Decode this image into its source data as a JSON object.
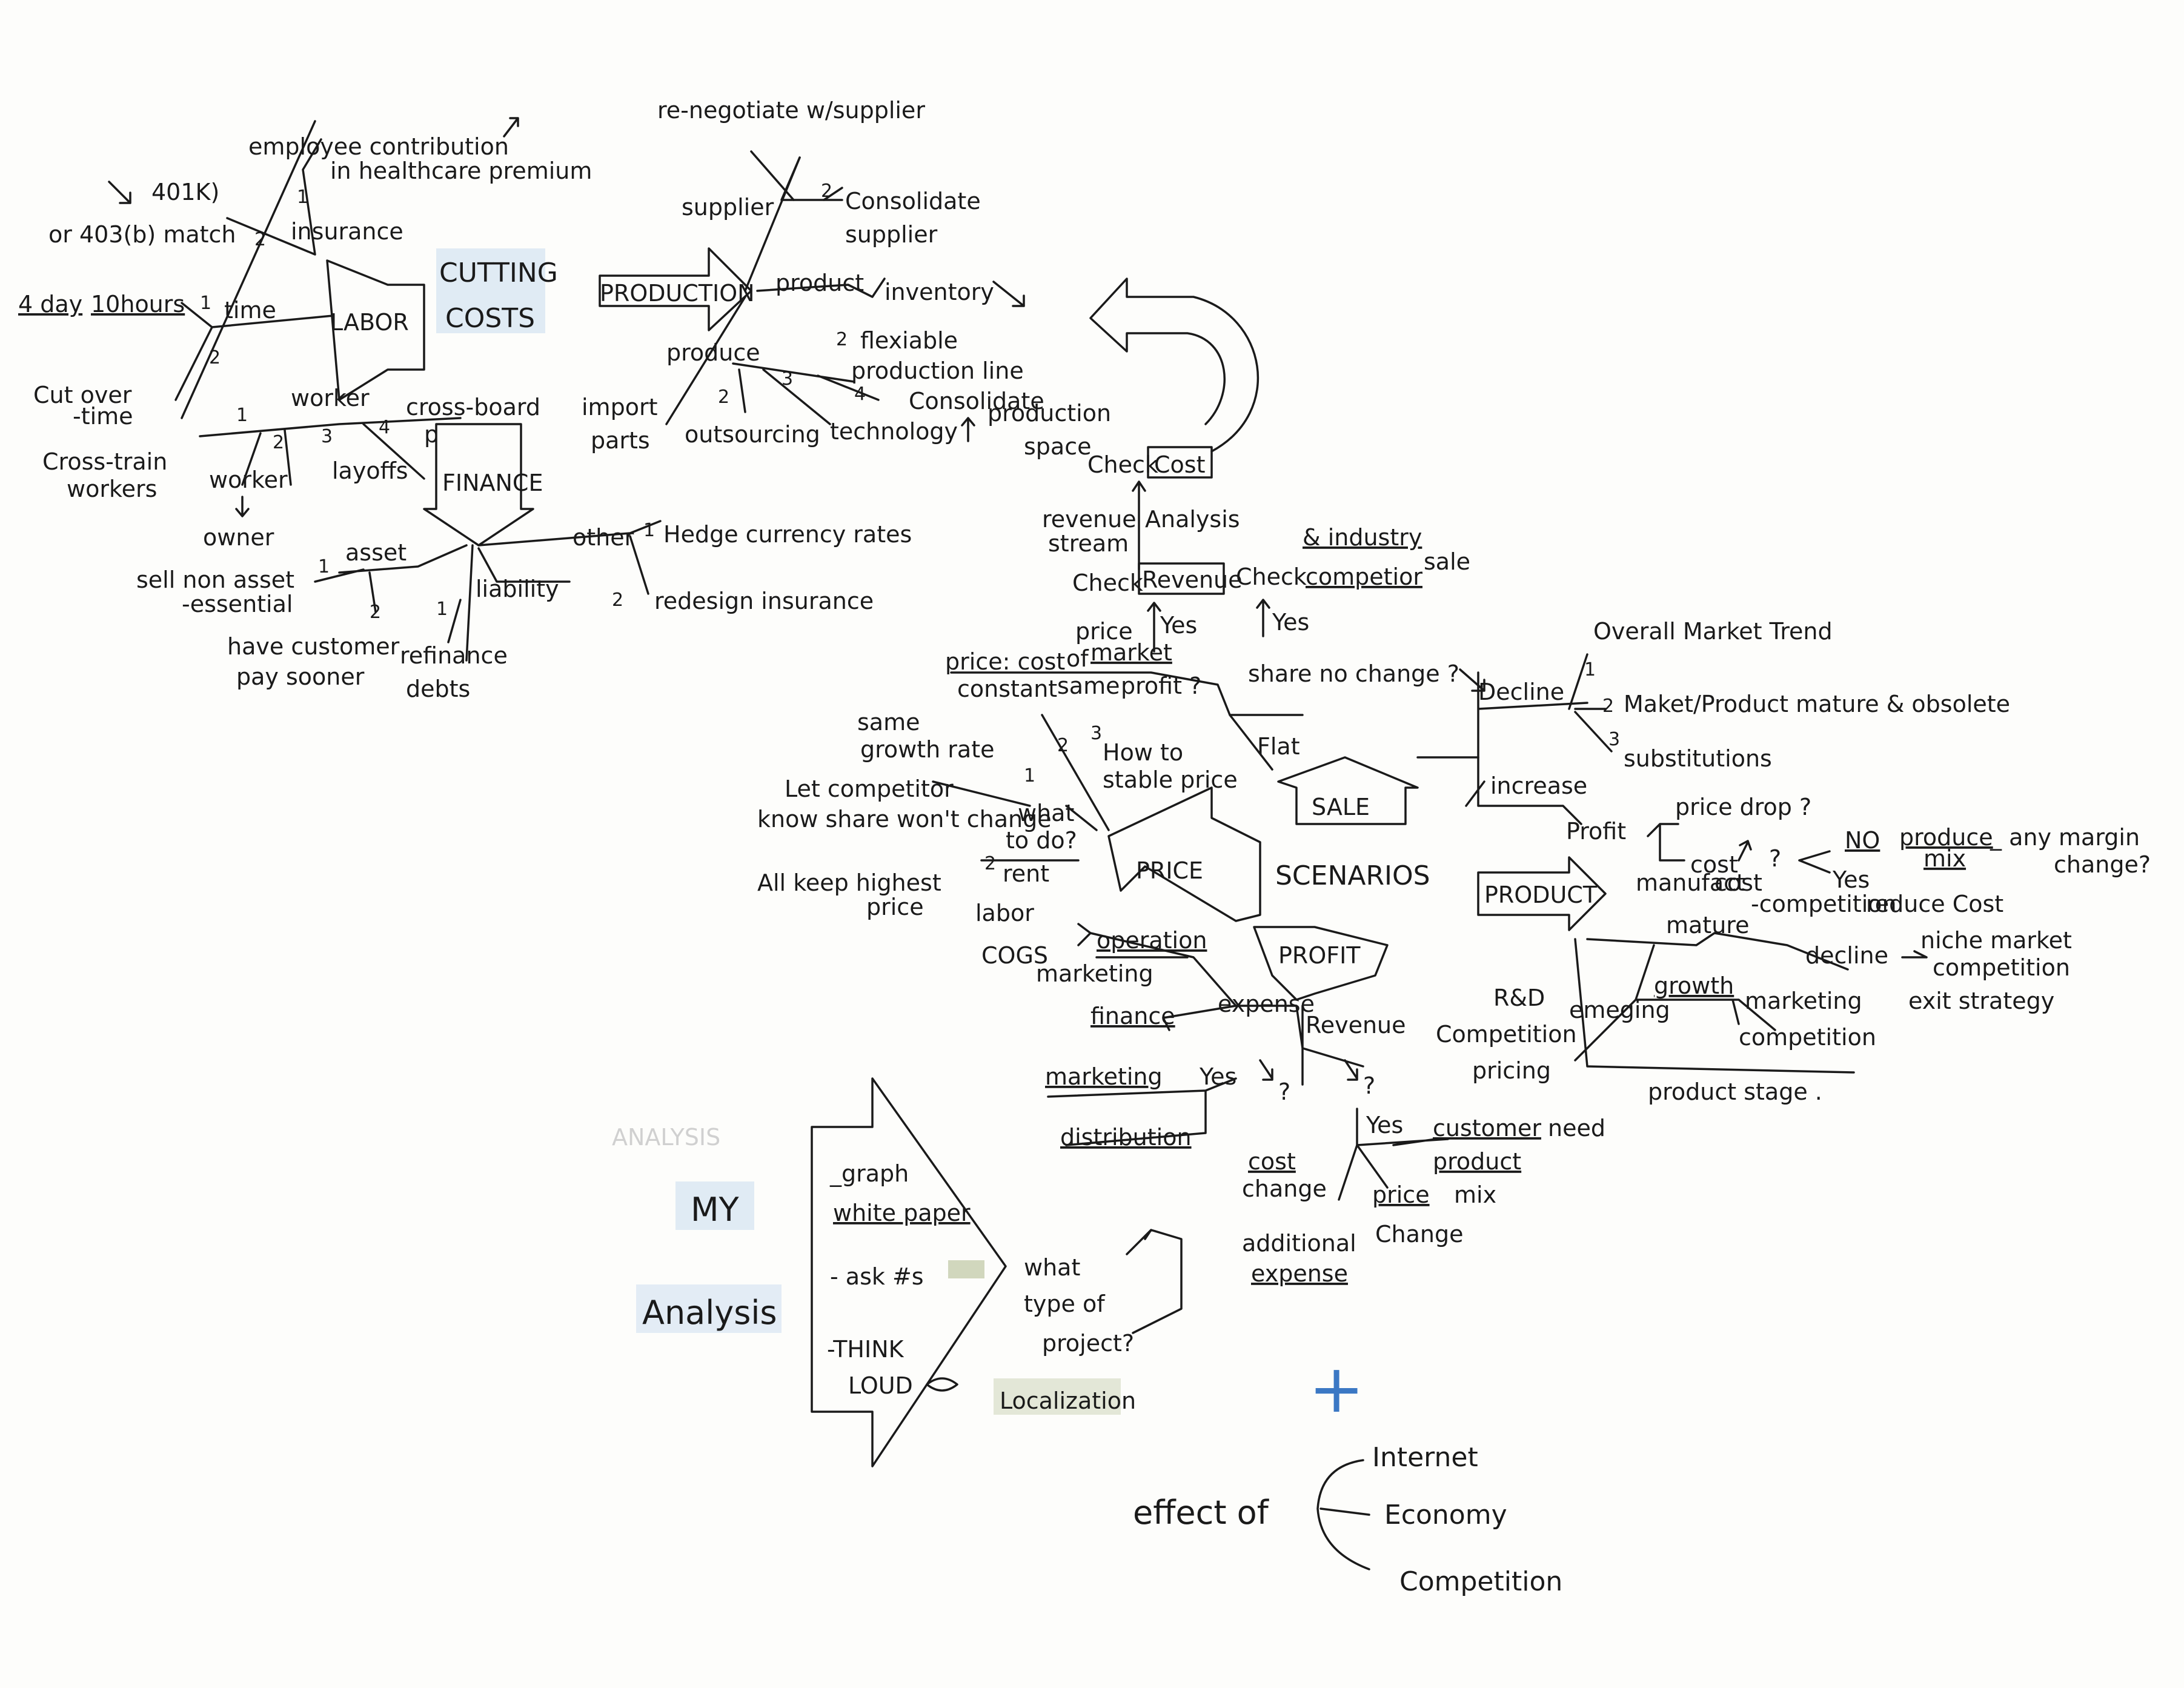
{
  "labor": {
    "label": "LABOR",
    "insurance": "insurance",
    "employee_contribution": "employee contribution",
    "in_healthcare_premium": "in healthcare premium",
    "k401": "401K)",
    "match_403b": "or 403(b) match",
    "time": "time",
    "four_day": "4 day",
    "ten_hours": "10hours",
    "cut_over": "Cut over",
    "time_word": "-time",
    "worker": "worker",
    "cross_train": "Cross-train",
    "workers": "workers",
    "worker_owner_a": "worker",
    "worker_owner_b": "owner",
    "layoffs": "layoffs",
    "cross_board": "cross-board",
    "pay": "pay"
  },
  "cutting_costs": {
    "line1": "CUTTING",
    "line2": "COSTS"
  },
  "production": {
    "label": "PRODUCTION",
    "re_negotiate": "re-negotiate w/supplier",
    "supplier": "supplier",
    "consolidate_supplier_a": "Consolidate",
    "consolidate_supplier_b": "supplier",
    "product": "product",
    "inventory": "inventory",
    "flexible_a": "flexiable",
    "flexible_b": "production line",
    "produce": "produce",
    "import_a": "import",
    "import_b": "parts",
    "outsourcing": "outsourcing",
    "technology": "technology",
    "consolidate_space_a": "Consolidate",
    "consolidate_space_b": "production",
    "consolidate_space_c": "space"
  },
  "finance": {
    "label": "FINANCE",
    "asset": "asset",
    "sell_non_asset_a": "sell non  asset",
    "sell_non_asset_b": "-essential",
    "have_customer_a": "have customer",
    "have_customer_b": "pay sooner",
    "liability": "liability",
    "refinance_a": "refinance",
    "refinance_b": "debts",
    "other": "other",
    "hedge": "Hedge currency rates",
    "redesign": "redesign insurance"
  },
  "check": {
    "check_cost_a": "Check",
    "check_cost_b": "Cost",
    "revenue_stream_a": "revenue",
    "revenue_stream_b": "stream",
    "analysis": "Analysis",
    "check_revenue_a": "Check",
    "check_revenue_b": "Revenue",
    "check_competitor_a": "Check",
    "check_competitor_b": "competior",
    "sale": "sale",
    "industry": "& industry",
    "yes_a": "Yes",
    "yes_b": "Yes"
  },
  "price": {
    "label": "PRICE",
    "price_cost": "price: cost",
    "constant": "constant",
    "of": "of",
    "price_market_a": "price",
    "price_market_b": "market",
    "same": "same",
    "profit_q": "profit ?",
    "share_no_change": "share no change ?",
    "same_growth_a": "same",
    "same_growth_b": "growth rate",
    "how_to_a": "How to",
    "how_to_b": "stable price",
    "let_competitor": "Let competitor",
    "know_share": "know share won't change",
    "what_to_do_a": "what",
    "what_to_do_b": "to do?",
    "all_keep_a": "All keep highest",
    "all_keep_b": "price"
  },
  "sale": {
    "label": "SALE",
    "flat": "Flat",
    "decline": "Decline",
    "overall": "Overall Market Trend",
    "maket_product": "Maket/Product  mature & obsolete",
    "substitutions": "substitutions",
    "increase": "increase",
    "profit": "Profit",
    "price_drop": "price drop ?",
    "cost_q": "cost",
    "qmark": "?",
    "no": "NO",
    "produce_mix_a": "produce",
    "produce_mix_b": "mix",
    "any_margin": "_ any margin",
    "change": "change?",
    "yes": "Yes",
    "manufact": "manufact",
    "cost_word": "cost",
    "competition": "-competition",
    "reduce_cost": "reduce Cost"
  },
  "scenarios": "SCENARIOS",
  "product": {
    "label": "PRODUCT",
    "mature": "mature",
    "decline": "decline",
    "niche": "niche market",
    "competition": "competition",
    "exit": "exit strategy",
    "growth": "growth",
    "marketing": "marketing",
    "competition2": "competition",
    "emerging": "emeging",
    "rd": "R&D",
    "competition3": "Competition",
    "pricing": "pricing",
    "stage": "product stage ."
  },
  "profit": {
    "label": "PROFIT",
    "rent": "rent",
    "labor": "labor",
    "cogs": "COGS",
    "operation": "operation",
    "marketing": "marketing",
    "finance": "finance",
    "expense": "expense",
    "revenue": "Revenue",
    "marketing2": "marketing",
    "yes": "Yes",
    "distribution": "distribution",
    "q1": "?",
    "q2": "?",
    "yes2": "Yes",
    "customer": "customer",
    "need": "need",
    "product": "product",
    "mix": "mix",
    "cost_change_a": "cost",
    "cost_change_b": "change",
    "price_change_a": "price",
    "price_change_b": "Change",
    "additional_a": "additional",
    "additional_b": "expense"
  },
  "my_analysis": {
    "faint": "ANALYSIS",
    "my": "MY",
    "analysis": "Analysis",
    "graph": "_graph",
    "white_paper": "white paper",
    "ask": "- ask #s",
    "think": "-THINK",
    "loud": "LOUD",
    "what_a": "what",
    "what_b": "type of",
    "what_c": "project?",
    "localization": "Localization"
  },
  "effect": {
    "plus": "+",
    "label": "effect of",
    "internet": "Internet",
    "economy": "Economy",
    "competition": "Competition"
  },
  "numbers": [
    "1",
    "2",
    "3",
    "4"
  ],
  "colors": {
    "ink": "#1a1a1a",
    "blue_highlight": "#a9c8e8",
    "green_highlight": "#7f8f4a",
    "plus_blue": "#3b78c4"
  }
}
